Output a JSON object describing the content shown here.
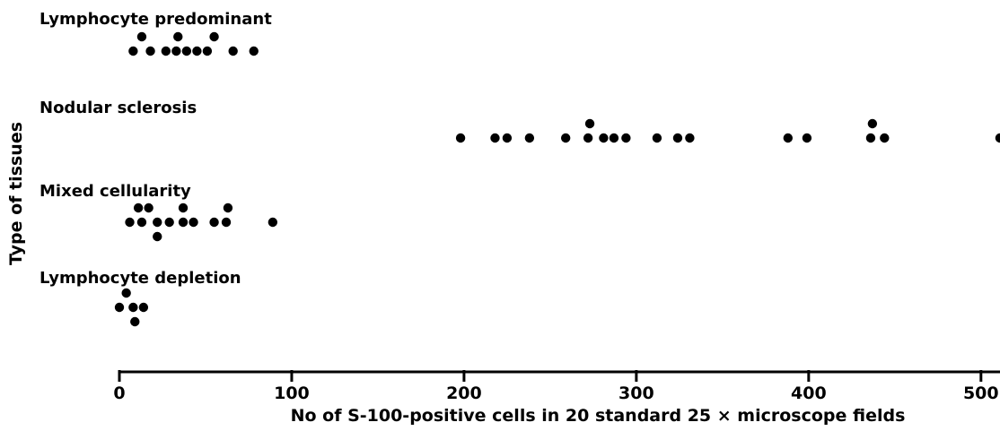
{
  "chart_data": {
    "type": "scatter",
    "xlabel": "No of S-100-positive cells in 20 standard 25 × microscope fields",
    "ylabel": "Type of tissues",
    "xlim": [
      0,
      510
    ],
    "x_ticks": [
      "0",
      "100",
      "200",
      "300",
      "400",
      "500"
    ],
    "grid": false,
    "legend": "none",
    "point_color": "#000000",
    "series": [
      {
        "name": "Lymphocyte predominant",
        "values": [
          8,
          13,
          18,
          27,
          33,
          34,
          39,
          45,
          51,
          55,
          66,
          78
        ]
      },
      {
        "name": "Nodular sclerosis",
        "values": [
          198,
          218,
          225,
          238,
          259,
          272,
          273,
          281,
          287,
          294,
          312,
          324,
          331,
          388,
          399,
          436,
          437,
          444,
          511
        ]
      },
      {
        "name": "Mixed cellularity",
        "values": [
          6,
          11,
          13,
          17,
          22,
          22,
          29,
          37,
          37,
          43,
          55,
          62,
          63,
          89
        ]
      },
      {
        "name": "Lymphocyte depletion",
        "values": [
          0,
          4,
          8,
          9,
          14
        ]
      }
    ]
  }
}
